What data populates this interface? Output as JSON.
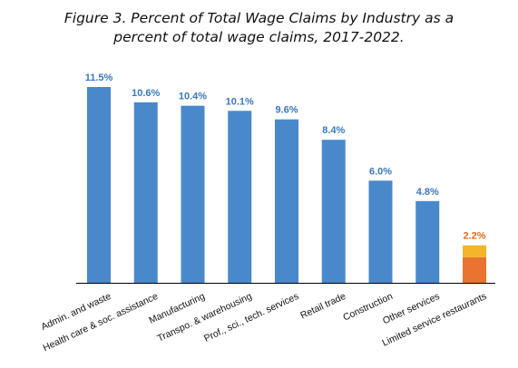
{
  "title": {
    "line1": "Figure 3. Percent of Total Wage Claims by Industry as a",
    "line2": "percent of total wage claims, 2017-2022."
  },
  "colors": {
    "bar": "#4a88cc",
    "highlight_top": "#f5b52a",
    "highlight_bottom": "#ea7331",
    "label_blue": "#3a78bf",
    "label_orange": "#e26a1c",
    "axis": "#000000"
  },
  "chart_data": {
    "type": "bar",
    "categories": [
      "Admin. and waste",
      "Health care & soc. assistance",
      "Manufacturing",
      "Transpo. & warehousing",
      "Prof., sci., tech. services",
      "Retail trade",
      "Construction",
      "Other services",
      "Limited service restaurants"
    ],
    "values": [
      11.5,
      10.6,
      10.4,
      10.1,
      9.6,
      8.4,
      6.0,
      4.8,
      2.2
    ],
    "data_labels": [
      "11.5%",
      "10.6%",
      "10.4%",
      "10.1%",
      "9.6%",
      "8.4%",
      "6.0%",
      "4.8%",
      "2.2%"
    ],
    "highlighted_category": "Limited service restaurants",
    "ylim": [
      0,
      11.5
    ],
    "grid": false,
    "legend": "none"
  }
}
